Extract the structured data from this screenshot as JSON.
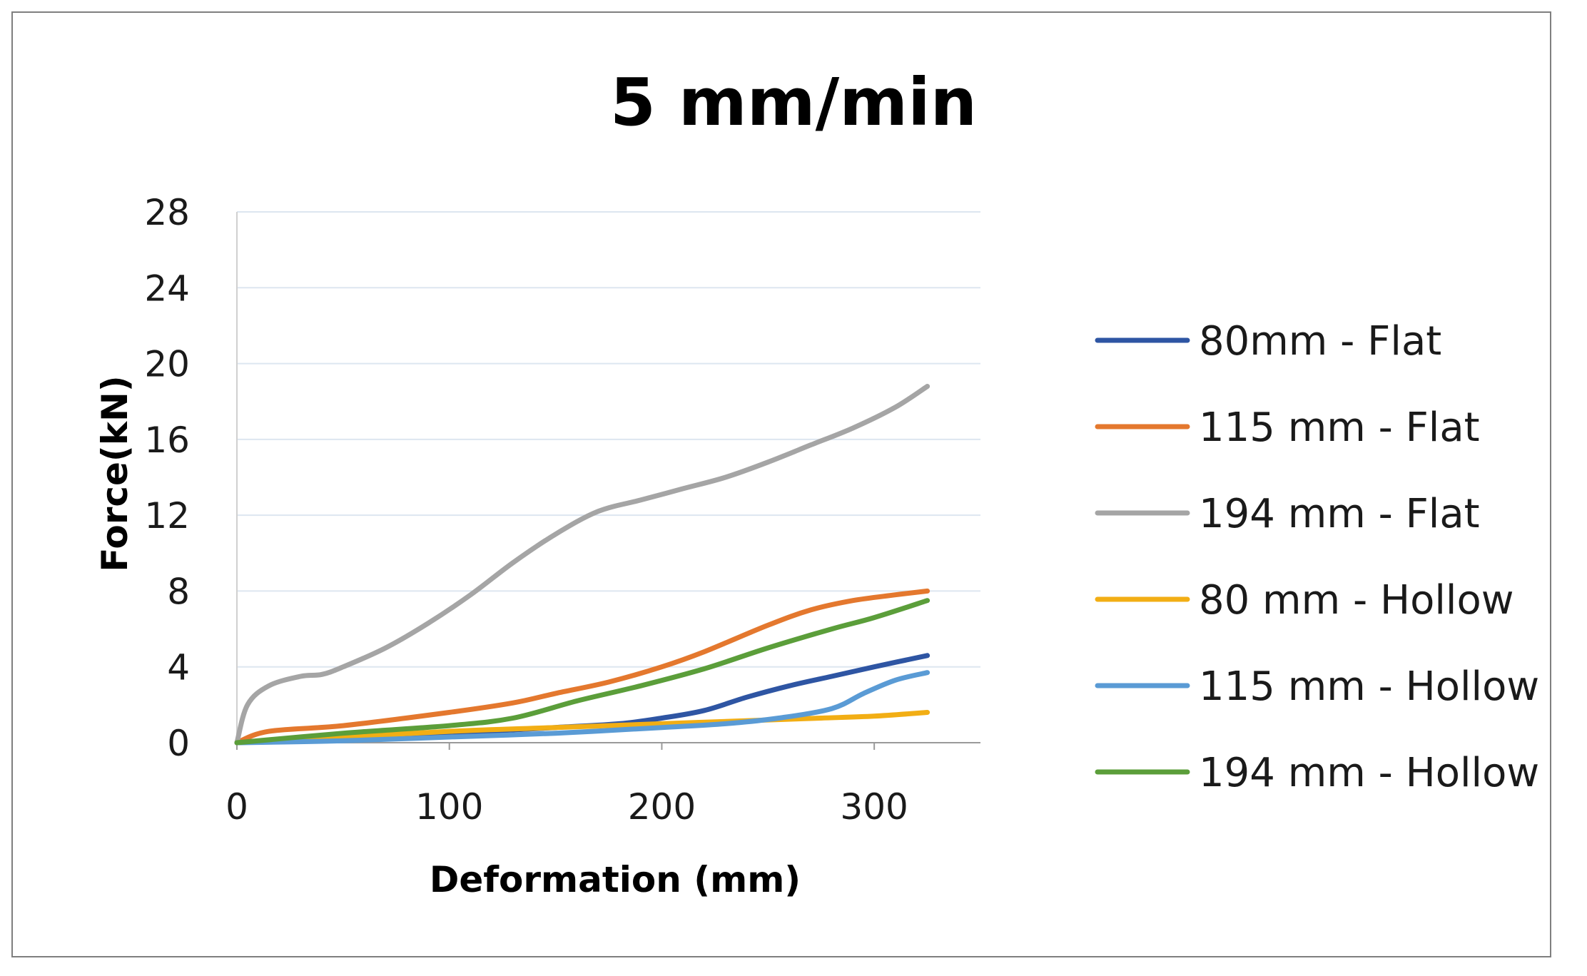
{
  "chart_data": {
    "type": "line",
    "title": "5 mm/min",
    "xlabel": "Deformation (mm)",
    "ylabel": "Force(kN)",
    "xlim": [
      0,
      350
    ],
    "ylim": [
      0,
      28
    ],
    "xticks": [
      0,
      100,
      200,
      300
    ],
    "yticks": [
      0,
      4,
      8,
      12,
      16,
      20,
      24,
      28
    ],
    "grid": "horizontal",
    "legend_position": "right",
    "series": [
      {
        "name": "80mm - Flat",
        "color": "#2E55A3",
        "x": [
          0,
          50,
          100,
          150,
          180,
          200,
          220,
          240,
          260,
          280,
          300,
          325
        ],
        "y": [
          0,
          0.3,
          0.5,
          0.8,
          1.0,
          1.3,
          1.7,
          2.4,
          3.0,
          3.5,
          4.0,
          4.6
        ]
      },
      {
        "name": "115 mm - Flat",
        "color": "#E4782E",
        "x": [
          0,
          15,
          50,
          100,
          130,
          150,
          175,
          200,
          220,
          250,
          270,
          290,
          310,
          325
        ],
        "y": [
          0,
          0.6,
          0.9,
          1.6,
          2.1,
          2.6,
          3.2,
          4.0,
          4.8,
          6.2,
          7.0,
          7.5,
          7.8,
          8.0
        ]
      },
      {
        "name": "194 mm - Flat",
        "color": "#A5A5A5",
        "x": [
          0,
          5,
          15,
          30,
          40,
          50,
          70,
          90,
          110,
          130,
          150,
          170,
          190,
          210,
          230,
          250,
          270,
          290,
          310,
          325
        ],
        "y": [
          0,
          2.0,
          3.0,
          3.5,
          3.6,
          4.0,
          5.0,
          6.3,
          7.8,
          9.5,
          11.0,
          12.2,
          12.8,
          13.4,
          14.0,
          14.8,
          15.7,
          16.6,
          17.7,
          18.8
        ]
      },
      {
        "name": "80 mm - Hollow",
        "color": "#F2AE14",
        "x": [
          0,
          50,
          100,
          150,
          200,
          250,
          275,
          300,
          325
        ],
        "y": [
          0,
          0.3,
          0.6,
          0.8,
          1.0,
          1.2,
          1.3,
          1.4,
          1.6
        ]
      },
      {
        "name": "115 mm - Hollow",
        "color": "#5A9BD5",
        "x": [
          0,
          50,
          100,
          150,
          200,
          230,
          255,
          280,
          295,
          310,
          325
        ],
        "y": [
          0,
          0.1,
          0.3,
          0.5,
          0.8,
          1.0,
          1.3,
          1.8,
          2.6,
          3.3,
          3.7
        ]
      },
      {
        "name": "194 mm - Hollow",
        "color": "#5B9E3A",
        "x": [
          0,
          50,
          100,
          130,
          160,
          190,
          220,
          250,
          280,
          300,
          325
        ],
        "y": [
          0,
          0.5,
          0.9,
          1.3,
          2.2,
          3.0,
          3.9,
          5.0,
          6.0,
          6.6,
          7.5
        ]
      }
    ]
  }
}
